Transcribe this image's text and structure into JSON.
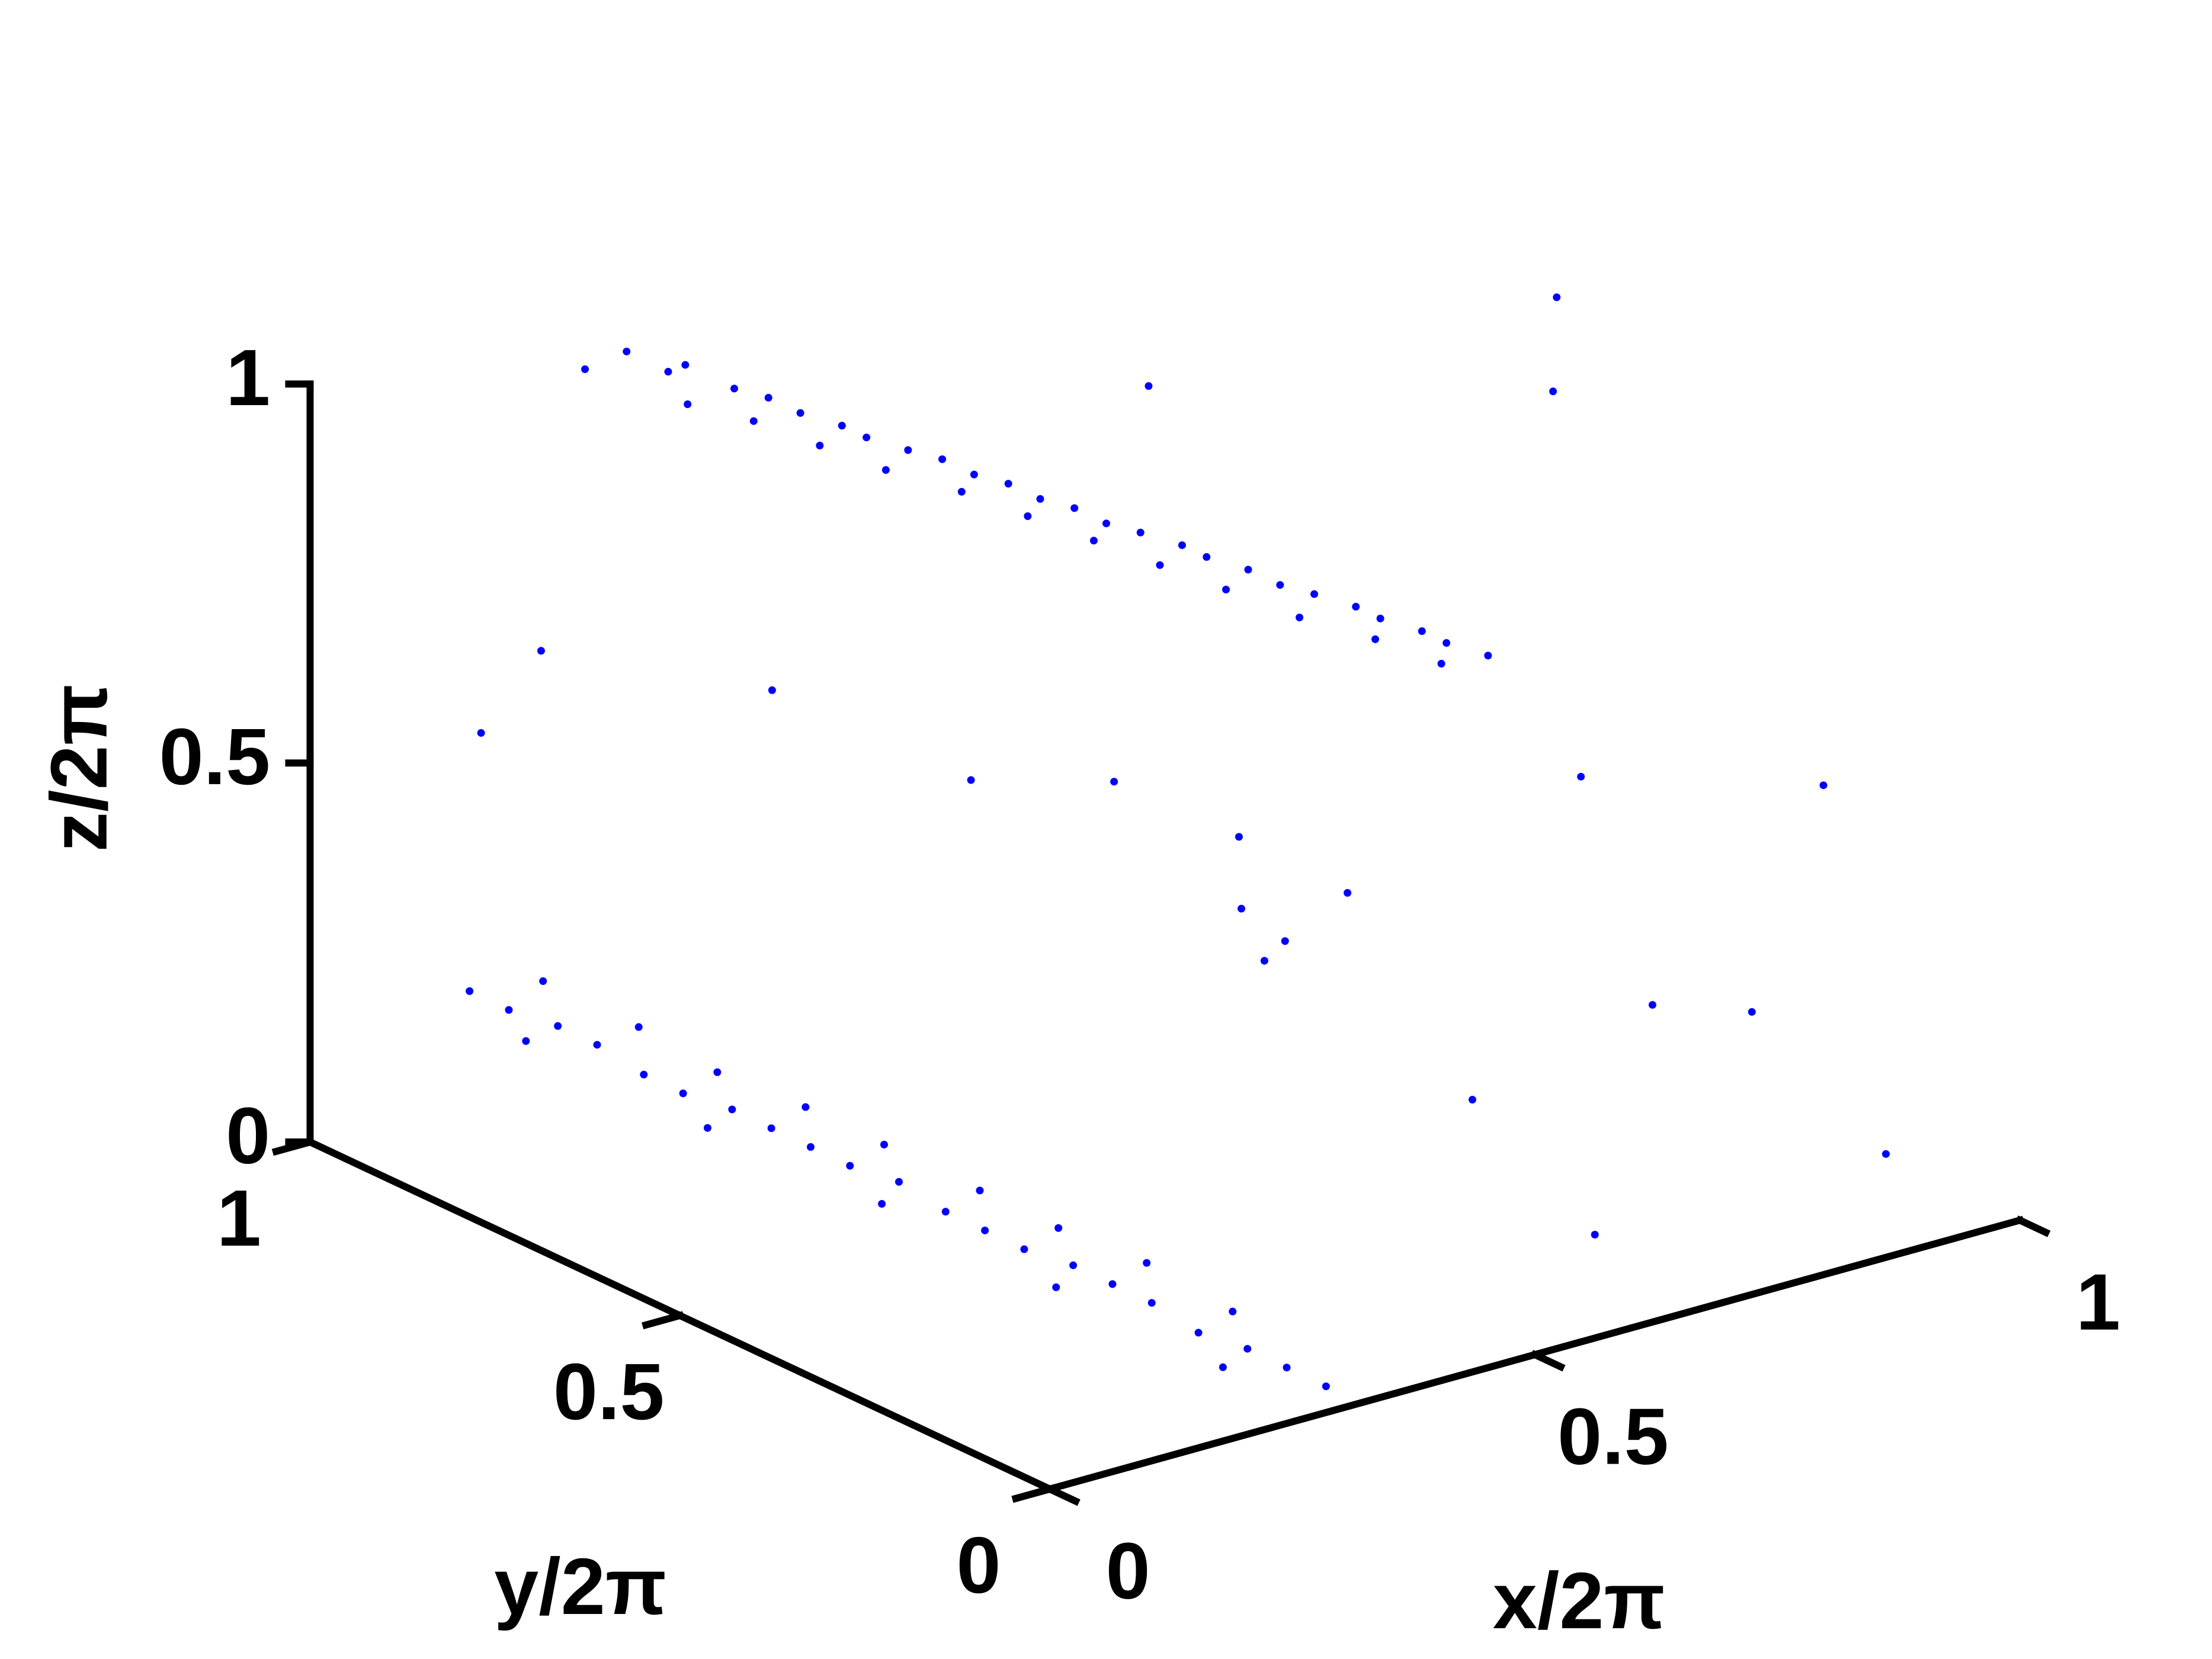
{
  "chart_data": {
    "type": "scatter3d",
    "xlabel": "x/2π",
    "ylabel": "y/2π",
    "zlabel": "z/2π",
    "xlim": [
      0,
      1
    ],
    "ylim": [
      0,
      1
    ],
    "zlim": [
      0,
      1
    ],
    "xticks": [
      0,
      0.5,
      1
    ],
    "yticks": [
      0,
      0.5,
      1
    ],
    "zticks": [
      0,
      0.5,
      1
    ],
    "color": "#0000ff",
    "points": [
      [
        0.25,
        0.9,
        1.0
      ],
      [
        0.27,
        0.87,
        0.98
      ],
      [
        0.28,
        0.86,
        0.99
      ],
      [
        0.3,
        0.82,
        0.97
      ],
      [
        0.32,
        0.8,
        0.96
      ],
      [
        0.33,
        0.77,
        0.95
      ],
      [
        0.35,
        0.74,
        0.94
      ],
      [
        0.36,
        0.72,
        0.93
      ],
      [
        0.38,
        0.69,
        0.92
      ],
      [
        0.4,
        0.67,
        0.91
      ],
      [
        0.41,
        0.64,
        0.9
      ],
      [
        0.43,
        0.62,
        0.89
      ],
      [
        0.44,
        0.59,
        0.88
      ],
      [
        0.46,
        0.57,
        0.87
      ],
      [
        0.47,
        0.54,
        0.86
      ],
      [
        0.49,
        0.52,
        0.85
      ],
      [
        0.51,
        0.49,
        0.84
      ],
      [
        0.52,
        0.47,
        0.83
      ],
      [
        0.54,
        0.44,
        0.82
      ],
      [
        0.55,
        0.41,
        0.81
      ],
      [
        0.57,
        0.39,
        0.8
      ],
      [
        0.59,
        0.36,
        0.79
      ],
      [
        0.6,
        0.34,
        0.78
      ],
      [
        0.62,
        0.31,
        0.77
      ],
      [
        0.63,
        0.29,
        0.76
      ],
      [
        0.65,
        0.26,
        0.75
      ],
      [
        0.29,
        0.87,
        0.93
      ],
      [
        0.32,
        0.82,
        0.92
      ],
      [
        0.35,
        0.77,
        0.9
      ],
      [
        0.38,
        0.72,
        0.88
      ],
      [
        0.42,
        0.67,
        0.86
      ],
      [
        0.45,
        0.62,
        0.84
      ],
      [
        0.48,
        0.57,
        0.82
      ],
      [
        0.51,
        0.52,
        0.8
      ],
      [
        0.54,
        0.47,
        0.78
      ],
      [
        0.57,
        0.41,
        0.76
      ],
      [
        0.61,
        0.36,
        0.74
      ],
      [
        0.64,
        0.31,
        0.72
      ],
      [
        0.23,
        0.93,
        0.97
      ],
      [
        0.05,
        0.85,
        0.25
      ],
      [
        0.06,
        0.81,
        0.24
      ],
      [
        0.08,
        0.77,
        0.23
      ],
      [
        0.09,
        0.73,
        0.22
      ],
      [
        0.1,
        0.68,
        0.2
      ],
      [
        0.11,
        0.64,
        0.19
      ],
      [
        0.13,
        0.6,
        0.18
      ],
      [
        0.14,
        0.56,
        0.17
      ],
      [
        0.15,
        0.52,
        0.16
      ],
      [
        0.16,
        0.48,
        0.15
      ],
      [
        0.18,
        0.44,
        0.14
      ],
      [
        0.19,
        0.39,
        0.12
      ],
      [
        0.2,
        0.35,
        0.11
      ],
      [
        0.21,
        0.31,
        0.1
      ],
      [
        0.23,
        0.27,
        0.09
      ],
      [
        0.24,
        0.23,
        0.08
      ],
      [
        0.25,
        0.19,
        0.07
      ],
      [
        0.26,
        0.14,
        0.05
      ],
      [
        0.28,
        0.1,
        0.04
      ],
      [
        0.29,
        0.06,
        0.03
      ],
      [
        0.3,
        0.02,
        0.02
      ],
      [
        0.08,
        0.79,
        0.28
      ],
      [
        0.11,
        0.7,
        0.25
      ],
      [
        0.13,
        0.62,
        0.22
      ],
      [
        0.16,
        0.54,
        0.2
      ],
      [
        0.18,
        0.46,
        0.18
      ],
      [
        0.21,
        0.37,
        0.15
      ],
      [
        0.23,
        0.29,
        0.13
      ],
      [
        0.26,
        0.21,
        0.11
      ],
      [
        0.28,
        0.12,
        0.08
      ],
      [
        0.07,
        0.8,
        0.2
      ],
      [
        0.12,
        0.62,
        0.15
      ],
      [
        0.17,
        0.45,
        0.11
      ],
      [
        0.22,
        0.28,
        0.06
      ],
      [
        0.27,
        0.12,
        0.01
      ],
      [
        0.5,
        0.4,
        0.5
      ],
      [
        0.7,
        0.2,
        0.6
      ],
      [
        0.9,
        0.5,
        0.9
      ],
      [
        0.8,
        0.1,
        0.3
      ],
      [
        0.6,
        0.7,
        0.4
      ],
      [
        0.4,
        0.9,
        0.5
      ],
      [
        0.95,
        0.2,
        0.5
      ],
      [
        0.3,
        0.5,
        0.6
      ],
      [
        0.7,
        0.6,
        0.2
      ],
      [
        0.85,
        0.3,
        0.2
      ],
      [
        0.55,
        0.15,
        0.25
      ],
      [
        0.2,
        0.95,
        0.6
      ],
      [
        0.65,
        0.45,
        0.35
      ],
      [
        0.45,
        0.3,
        0.4
      ],
      [
        0.9,
        0.05,
        0.1
      ],
      [
        0.75,
        0.85,
        0.8
      ],
      [
        0.35,
        0.2,
        0.55
      ],
      [
        0.6,
        0.05,
        0.1
      ],
      [
        0.98,
        0.6,
        0.95
      ],
      [
        0.1,
        0.9,
        0.55
      ]
    ]
  }
}
